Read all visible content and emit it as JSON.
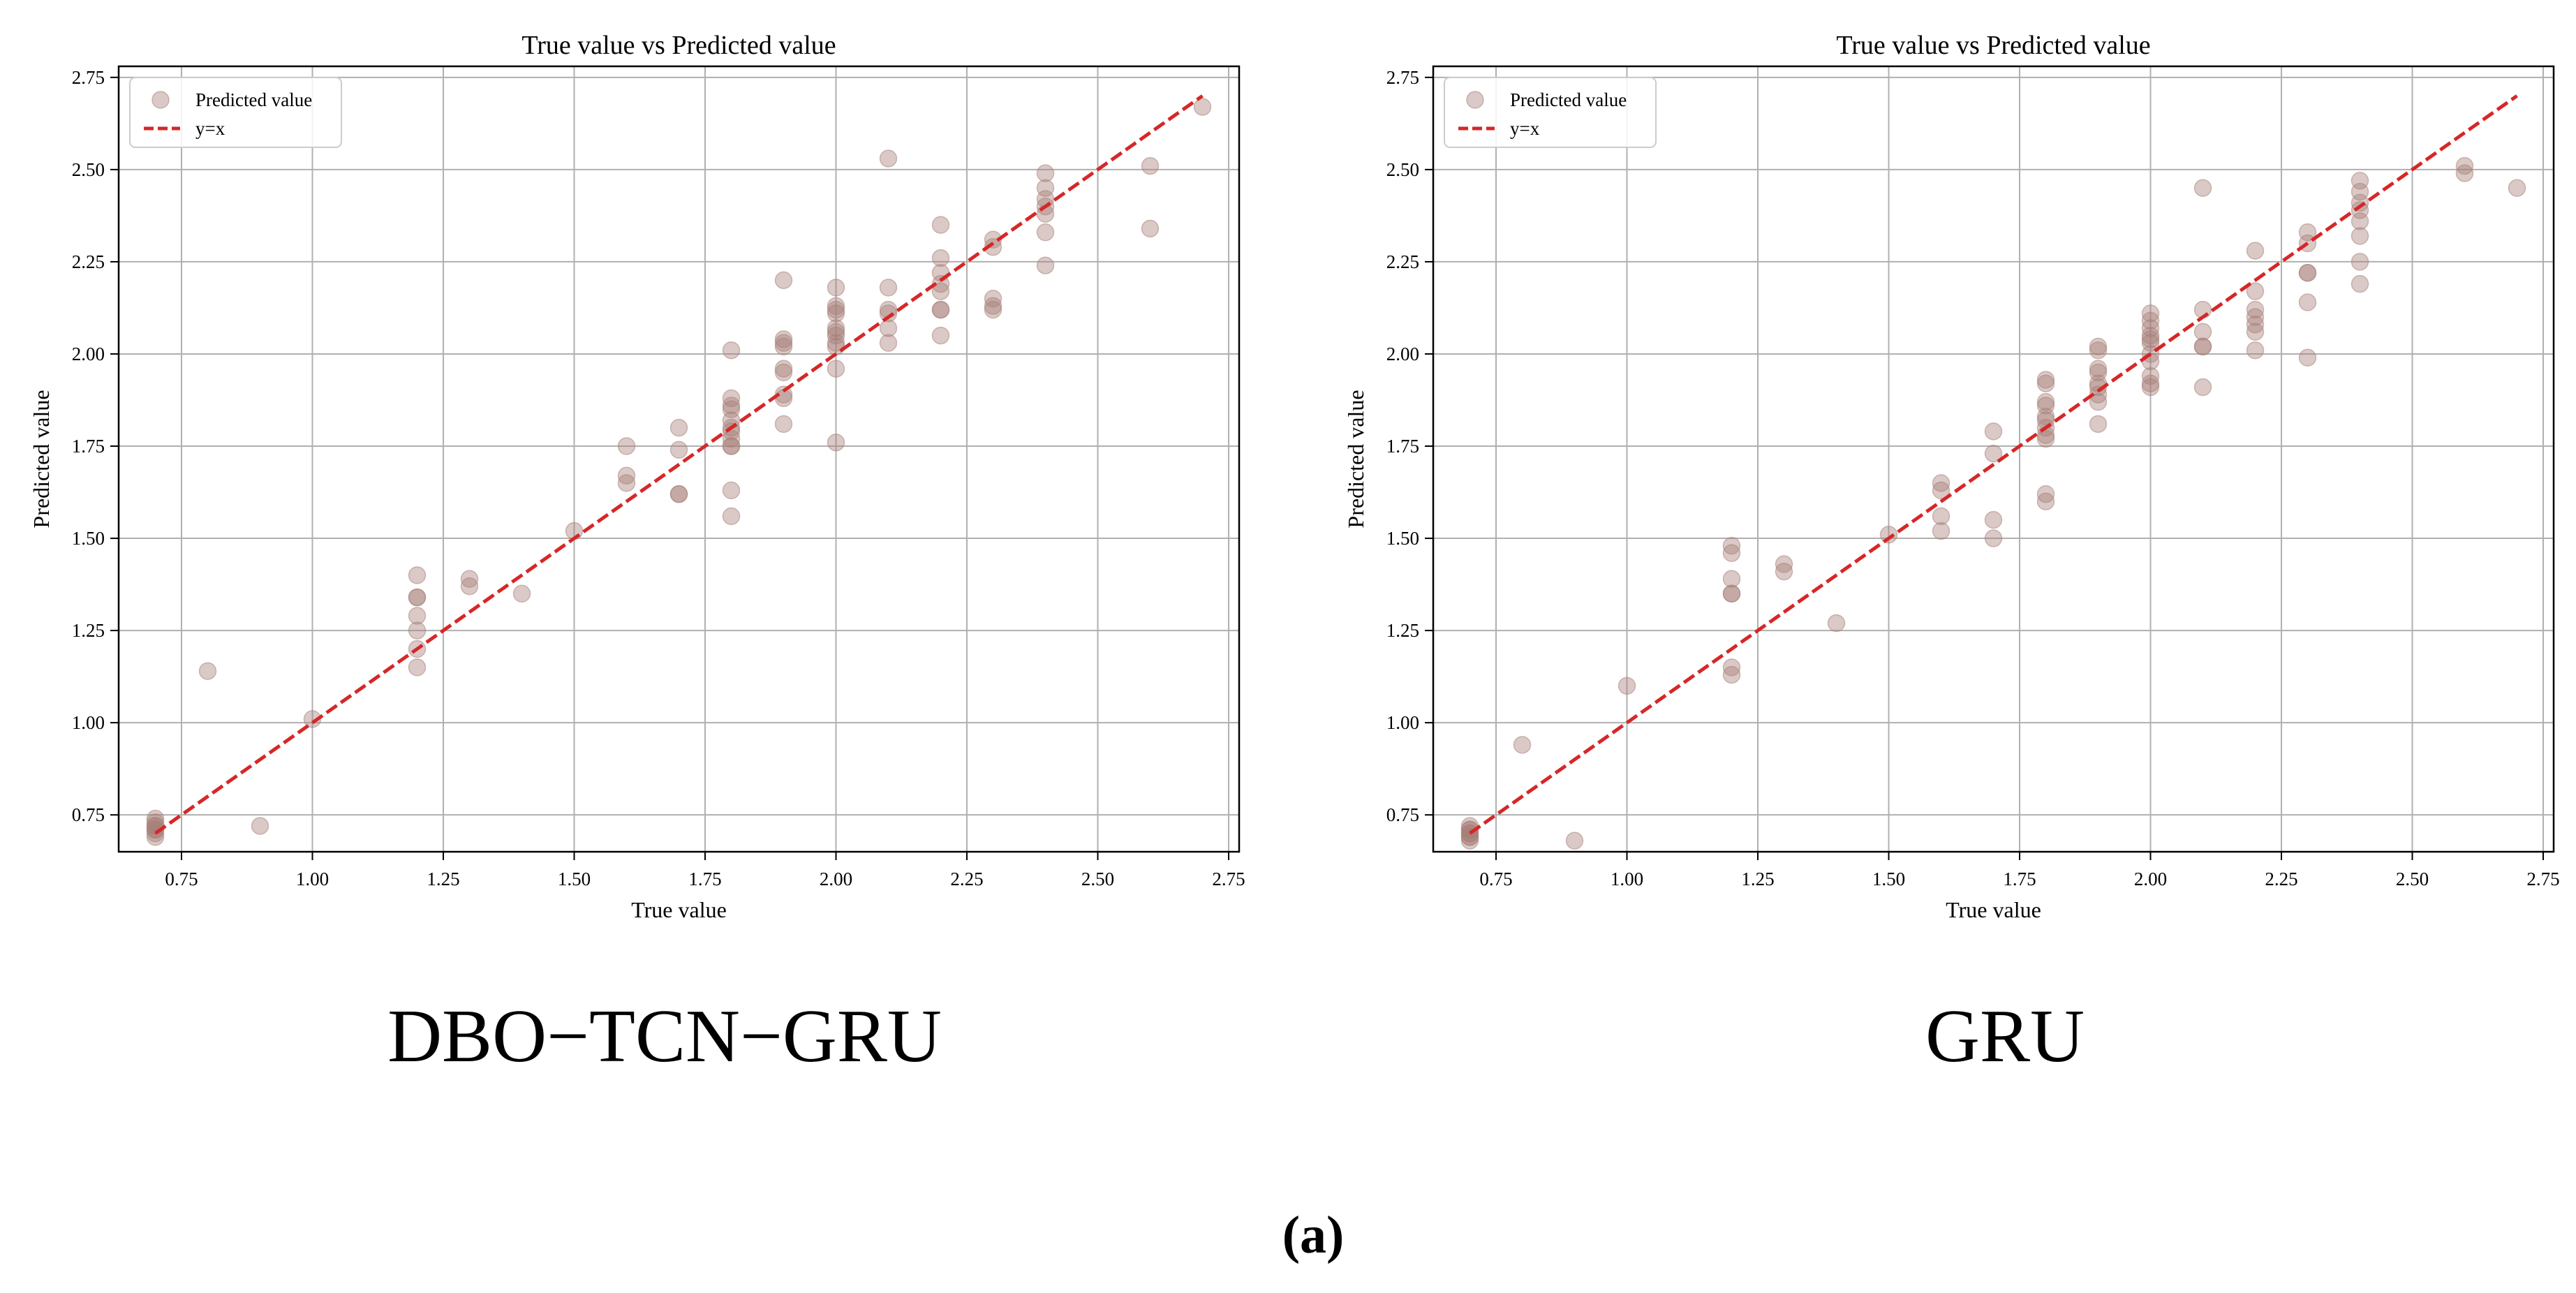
{
  "colors": {
    "point": "#a67f78",
    "diagonal": "#d62728",
    "grid": "#b0b0b0",
    "axis": "#000000"
  },
  "figure_label": "(a)",
  "chart_data": [
    {
      "type": "scatter",
      "title": "True value vs Predicted value",
      "xlabel": "True value",
      "ylabel": "Predicted value",
      "model_label": "DBO−TCN−GRU",
      "xlim": [
        0.63,
        2.77
      ],
      "ylim": [
        0.65,
        2.78
      ],
      "xticks": [
        "0.75",
        "1.00",
        "1.25",
        "1.50",
        "1.75",
        "2.00",
        "2.25",
        "2.50",
        "2.75"
      ],
      "yticks": [
        "0.75",
        "1.00",
        "1.25",
        "1.50",
        "1.75",
        "2.00",
        "2.25",
        "2.50",
        "2.75"
      ],
      "grid": true,
      "legend_position": "top-left",
      "legend": [
        "Predicted value",
        "y=x"
      ],
      "diagonal": [
        0.7,
        2.7
      ],
      "points": [
        [
          0.7,
          0.69
        ],
        [
          0.7,
          0.7
        ],
        [
          0.7,
          0.71
        ],
        [
          0.7,
          0.72
        ],
        [
          0.7,
          0.73
        ],
        [
          0.7,
          0.74
        ],
        [
          0.7,
          0.71
        ],
        [
          0.7,
          0.72
        ],
        [
          0.8,
          1.14
        ],
        [
          0.9,
          0.72
        ],
        [
          1.0,
          1.01
        ],
        [
          1.2,
          1.4
        ],
        [
          1.2,
          1.34
        ],
        [
          1.2,
          1.34
        ],
        [
          1.2,
          1.29
        ],
        [
          1.2,
          1.25
        ],
        [
          1.2,
          1.2
        ],
        [
          1.2,
          1.15
        ],
        [
          1.3,
          1.39
        ],
        [
          1.3,
          1.37
        ],
        [
          1.4,
          1.35
        ],
        [
          1.5,
          1.52
        ],
        [
          1.6,
          1.75
        ],
        [
          1.6,
          1.67
        ],
        [
          1.6,
          1.65
        ],
        [
          1.7,
          1.8
        ],
        [
          1.7,
          1.74
        ],
        [
          1.7,
          1.62
        ],
        [
          1.7,
          1.62
        ],
        [
          1.8,
          2.01
        ],
        [
          1.8,
          1.88
        ],
        [
          1.8,
          1.86
        ],
        [
          1.8,
          1.85
        ],
        [
          1.8,
          1.82
        ],
        [
          1.8,
          1.8
        ],
        [
          1.8,
          1.79
        ],
        [
          1.8,
          1.77
        ],
        [
          1.8,
          1.75
        ],
        [
          1.8,
          1.75
        ],
        [
          1.8,
          1.63
        ],
        [
          1.8,
          1.56
        ],
        [
          1.9,
          2.2
        ],
        [
          1.9,
          2.04
        ],
        [
          1.9,
          2.03
        ],
        [
          1.9,
          2.02
        ],
        [
          1.9,
          1.96
        ],
        [
          1.9,
          1.95
        ],
        [
          1.9,
          1.89
        ],
        [
          1.9,
          1.88
        ],
        [
          1.9,
          1.81
        ],
        [
          2.0,
          2.18
        ],
        [
          2.0,
          2.13
        ],
        [
          2.0,
          2.12
        ],
        [
          2.0,
          2.11
        ],
        [
          2.0,
          2.07
        ],
        [
          2.0,
          2.06
        ],
        [
          2.0,
          2.05
        ],
        [
          2.0,
          2.03
        ],
        [
          2.0,
          2.02
        ],
        [
          2.0,
          1.96
        ],
        [
          2.0,
          1.76
        ],
        [
          2.1,
          2.53
        ],
        [
          2.1,
          2.18
        ],
        [
          2.1,
          2.12
        ],
        [
          2.1,
          2.11
        ],
        [
          2.1,
          2.07
        ],
        [
          2.1,
          2.03
        ],
        [
          2.2,
          2.35
        ],
        [
          2.2,
          2.26
        ],
        [
          2.2,
          2.22
        ],
        [
          2.2,
          2.19
        ],
        [
          2.2,
          2.17
        ],
        [
          2.2,
          2.12
        ],
        [
          2.2,
          2.12
        ],
        [
          2.2,
          2.05
        ],
        [
          2.3,
          2.31
        ],
        [
          2.3,
          2.29
        ],
        [
          2.3,
          2.15
        ],
        [
          2.3,
          2.13
        ],
        [
          2.3,
          2.12
        ],
        [
          2.4,
          2.49
        ],
        [
          2.4,
          2.45
        ],
        [
          2.4,
          2.42
        ],
        [
          2.4,
          2.4
        ],
        [
          2.4,
          2.38
        ],
        [
          2.4,
          2.33
        ],
        [
          2.4,
          2.24
        ],
        [
          2.6,
          2.51
        ],
        [
          2.6,
          2.34
        ],
        [
          2.7,
          2.67
        ]
      ]
    },
    {
      "type": "scatter",
      "title": "True value vs Predicted value",
      "xlabel": "True value",
      "ylabel": "Predicted value",
      "model_label": "GRU",
      "xlim": [
        0.63,
        2.77
      ],
      "ylim": [
        0.65,
        2.78
      ],
      "xticks": [
        "0.75",
        "1.00",
        "1.25",
        "1.50",
        "1.75",
        "2.00",
        "2.25",
        "2.50",
        "2.75"
      ],
      "yticks": [
        "0.75",
        "1.00",
        "1.25",
        "1.50",
        "1.75",
        "2.00",
        "2.25",
        "2.50",
        "2.75"
      ],
      "grid": true,
      "legend_position": "top-left",
      "legend": [
        "Predicted value",
        "y=x"
      ],
      "diagonal": [
        0.7,
        2.7
      ],
      "points": [
        [
          0.7,
          0.68
        ],
        [
          0.7,
          0.69
        ],
        [
          0.7,
          0.7
        ],
        [
          0.7,
          0.71
        ],
        [
          0.7,
          0.72
        ],
        [
          0.7,
          0.71
        ],
        [
          0.7,
          0.7
        ],
        [
          0.7,
          0.69
        ],
        [
          0.8,
          0.94
        ],
        [
          0.9,
          0.68
        ],
        [
          1.0,
          1.1
        ],
        [
          1.2,
          1.48
        ],
        [
          1.2,
          1.46
        ],
        [
          1.2,
          1.39
        ],
        [
          1.2,
          1.35
        ],
        [
          1.2,
          1.35
        ],
        [
          1.2,
          1.15
        ],
        [
          1.2,
          1.13
        ],
        [
          1.3,
          1.43
        ],
        [
          1.3,
          1.41
        ],
        [
          1.4,
          1.27
        ],
        [
          1.5,
          1.51
        ],
        [
          1.6,
          1.65
        ],
        [
          1.6,
          1.63
        ],
        [
          1.6,
          1.56
        ],
        [
          1.6,
          1.52
        ],
        [
          1.7,
          1.79
        ],
        [
          1.7,
          1.73
        ],
        [
          1.7,
          1.55
        ],
        [
          1.7,
          1.5
        ],
        [
          1.8,
          1.93
        ],
        [
          1.8,
          1.92
        ],
        [
          1.8,
          1.87
        ],
        [
          1.8,
          1.86
        ],
        [
          1.8,
          1.83
        ],
        [
          1.8,
          1.82
        ],
        [
          1.8,
          1.8
        ],
        [
          1.8,
          1.78
        ],
        [
          1.8,
          1.77
        ],
        [
          1.8,
          1.62
        ],
        [
          1.8,
          1.6
        ],
        [
          1.9,
          2.02
        ],
        [
          1.9,
          2.01
        ],
        [
          1.9,
          1.96
        ],
        [
          1.9,
          1.95
        ],
        [
          1.9,
          1.92
        ],
        [
          1.9,
          1.91
        ],
        [
          1.9,
          1.89
        ],
        [
          1.9,
          1.87
        ],
        [
          1.9,
          1.81
        ],
        [
          2.0,
          2.11
        ],
        [
          2.0,
          2.09
        ],
        [
          2.0,
          2.07
        ],
        [
          2.0,
          2.05
        ],
        [
          2.0,
          2.04
        ],
        [
          2.0,
          2.03
        ],
        [
          2.0,
          2.0
        ],
        [
          2.0,
          1.98
        ],
        [
          2.0,
          1.94
        ],
        [
          2.0,
          1.92
        ],
        [
          2.0,
          1.91
        ],
        [
          2.1,
          2.45
        ],
        [
          2.1,
          2.12
        ],
        [
          2.1,
          2.06
        ],
        [
          2.1,
          2.02
        ],
        [
          2.1,
          2.02
        ],
        [
          2.1,
          1.91
        ],
        [
          2.2,
          2.28
        ],
        [
          2.2,
          2.17
        ],
        [
          2.2,
          2.12
        ],
        [
          2.2,
          2.1
        ],
        [
          2.2,
          2.08
        ],
        [
          2.2,
          2.06
        ],
        [
          2.2,
          2.01
        ],
        [
          2.3,
          2.33
        ],
        [
          2.3,
          2.3
        ],
        [
          2.3,
          2.22
        ],
        [
          2.3,
          2.22
        ],
        [
          2.3,
          2.14
        ],
        [
          2.3,
          1.99
        ],
        [
          2.4,
          2.47
        ],
        [
          2.4,
          2.44
        ],
        [
          2.4,
          2.41
        ],
        [
          2.4,
          2.39
        ],
        [
          2.4,
          2.36
        ],
        [
          2.4,
          2.32
        ],
        [
          2.4,
          2.25
        ],
        [
          2.4,
          2.19
        ],
        [
          2.6,
          2.51
        ],
        [
          2.6,
          2.49
        ],
        [
          2.7,
          2.45
        ]
      ]
    }
  ]
}
